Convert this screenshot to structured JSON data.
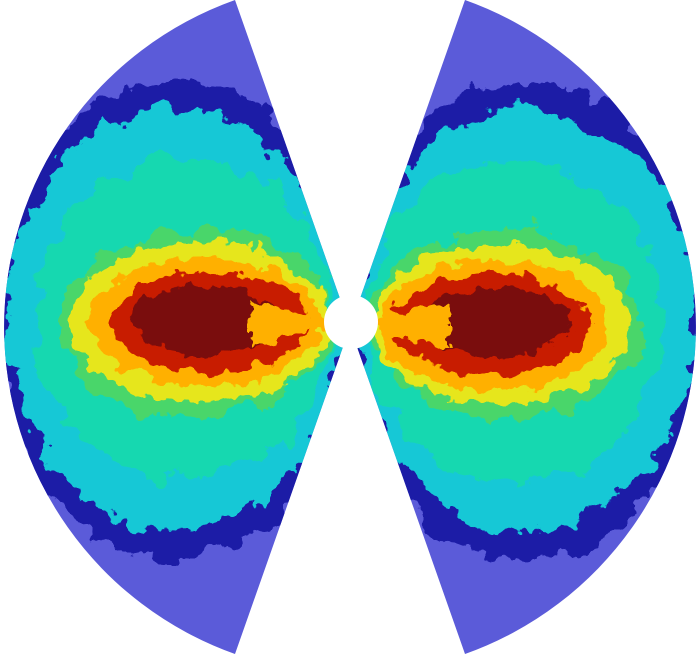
{
  "figure": {
    "kind": "axisymmetric simulation cross-section",
    "wedges": [
      "left",
      "right"
    ],
    "has_text": false,
    "colormap": [
      "#5b5bd9",
      "#1a1aa6",
      "#16c8d6",
      "#18d8b0",
      "#4ad66a",
      "#e6e61a",
      "#ffb000",
      "#ff5a00",
      "#c81a00",
      "#7a0a0a"
    ],
    "background": "#ffffff",
    "center_hole": "#ffffff"
  }
}
